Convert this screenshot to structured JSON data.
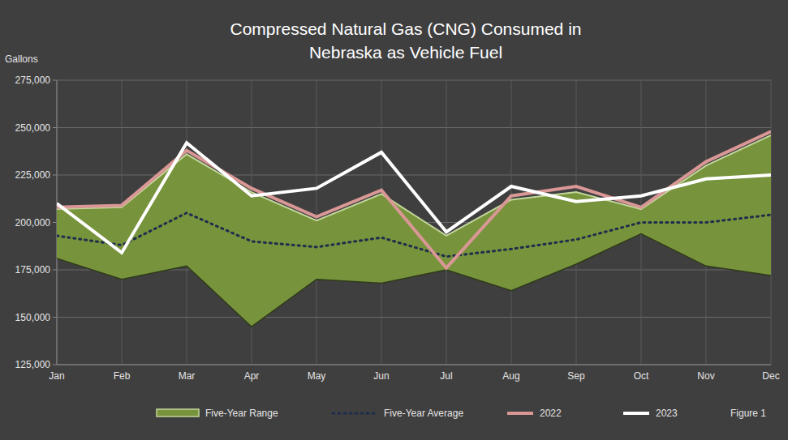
{
  "chart_data": {
    "type": "line",
    "title": "Compressed Natural Gas (CNG) Consumed in Nebraska as Vehicle Fuel",
    "y_label": "Gallons",
    "annotation": "Figure 1",
    "categories": [
      "Jan",
      "Feb",
      "Mar",
      "Apr",
      "May",
      "Jun",
      "Jul",
      "Aug",
      "Sep",
      "Oct",
      "Nov",
      "Dec"
    ],
    "series": [
      {
        "name": "Five-Year Range",
        "type": "area",
        "color": "#77933c",
        "high": [
          207000,
          208000,
          236000,
          216000,
          201000,
          215000,
          193000,
          212000,
          216000,
          207000,
          230000,
          246000
        ],
        "low": [
          181000,
          170000,
          177000,
          145000,
          170000,
          168000,
          175000,
          164000,
          178000,
          194000,
          177000,
          172000
        ]
      },
      {
        "name": "Five-Year Average",
        "type": "line",
        "color": "#1f2d4d",
        "line_style": "dotted",
        "values": [
          193000,
          188000,
          205000,
          190000,
          187000,
          192000,
          182000,
          186000,
          191000,
          200000,
          200000,
          204000
        ]
      },
      {
        "name": "2022",
        "type": "line",
        "color": "#d99795",
        "line_style": "solid",
        "values": [
          208000,
          209000,
          238000,
          218000,
          203000,
          217000,
          176000,
          214000,
          219000,
          208000,
          232000,
          248000
        ]
      },
      {
        "name": "2023",
        "type": "line",
        "color": "#ffffff",
        "line_style": "solid",
        "values": [
          210000,
          184000,
          242000,
          214000,
          218000,
          237000,
          195000,
          219000,
          211000,
          214000,
          223000,
          225000
        ]
      }
    ],
    "ylim": [
      125000,
      275000
    ],
    "yticks": [
      {
        "value": 125000,
        "label": "125,000"
      },
      {
        "value": 150000,
        "label": "150,000"
      },
      {
        "value": 175000,
        "label": "175,000"
      },
      {
        "value": 200000,
        "label": "200,000"
      },
      {
        "value": 225000,
        "label": "225,000"
      },
      {
        "value": 250000,
        "label": "250,000"
      },
      {
        "value": 275000,
        "label": "275,000"
      }
    ],
    "grid": true,
    "legend": "bottom"
  }
}
